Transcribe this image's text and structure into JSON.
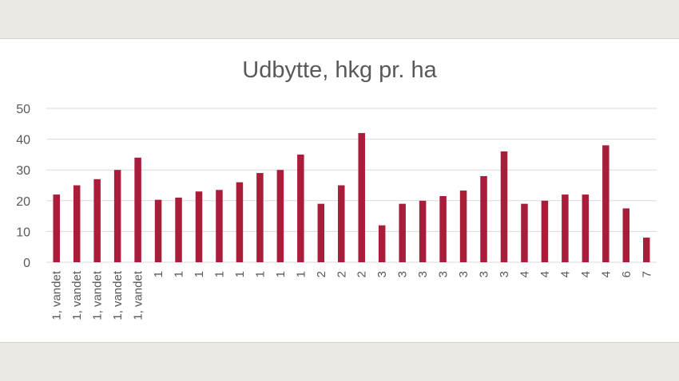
{
  "chart_data": {
    "type": "bar",
    "title": "Udbytte, hkg pr. ha",
    "xlabel": "",
    "ylabel": "",
    "ylim": [
      0,
      50
    ],
    "yticks": [
      0,
      10,
      20,
      30,
      40,
      50
    ],
    "grid": true,
    "legend": "none",
    "colors": {
      "bar": "#a91d3a",
      "grid": "#d9d9d9",
      "text": "#595959"
    },
    "categories": [
      "1, vandet",
      "1, vandet",
      "1, vandet",
      "1, vandet",
      "1, vandet",
      "1",
      "1",
      "1",
      "1",
      "1",
      "1",
      "1",
      "1",
      "2",
      "2",
      "2",
      "3",
      "3",
      "3",
      "3",
      "3",
      "3",
      "3",
      "4",
      "4",
      "4",
      "4",
      "4",
      "6",
      "7"
    ],
    "values": [
      22,
      25,
      27,
      30,
      34,
      20.3,
      21,
      23,
      23.5,
      26,
      29,
      30,
      35,
      19,
      25,
      42,
      12,
      19,
      20,
      21.5,
      23.3,
      28,
      36,
      19,
      20,
      22,
      22,
      38,
      17.5,
      8
    ]
  }
}
